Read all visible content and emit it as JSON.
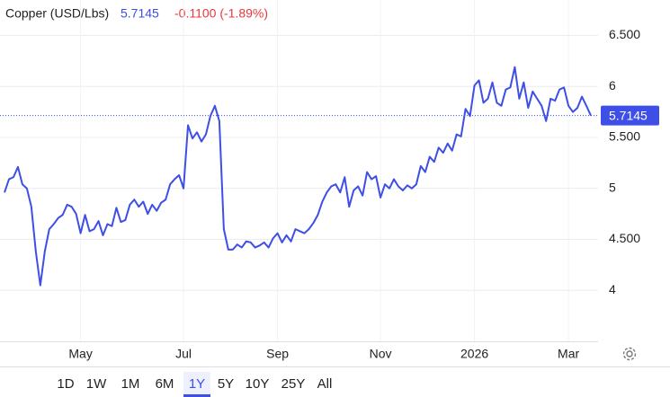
{
  "chart_data": {
    "type": "line",
    "title": "Copper (USD/Lbs)",
    "price": "5.7145",
    "change": "-0.1100 (-1.89%)",
    "color": "#3d4fe6",
    "change_color": "#e8383b",
    "grid": true,
    "categories": [
      null,
      null,
      null,
      null,
      null,
      null,
      null,
      null,
      null,
      null,
      null,
      null,
      null,
      null,
      null,
      null,
      null,
      "May",
      null,
      null,
      null,
      null,
      null,
      null,
      null,
      null,
      null,
      null,
      null,
      null,
      null,
      null,
      null,
      null,
      null,
      null,
      null,
      null,
      null,
      null,
      "Jul",
      null,
      null,
      null,
      null,
      null,
      null,
      null,
      null,
      null,
      null,
      null,
      null,
      null,
      null,
      null,
      null,
      null,
      null,
      null,
      null,
      "Sep",
      null,
      null,
      null,
      null,
      null,
      null,
      null,
      null,
      null,
      null,
      null,
      null,
      null,
      null,
      null,
      null,
      null,
      null,
      null,
      null,
      null,
      null,
      "Nov",
      null,
      null,
      null,
      null,
      null,
      null,
      null,
      null,
      null,
      null,
      null,
      null,
      null,
      null,
      null,
      null,
      null,
      null,
      null,
      null,
      "2026",
      null,
      null,
      null,
      null,
      null,
      null,
      null,
      null,
      null,
      null,
      null,
      null,
      null,
      null,
      null,
      null,
      null,
      null,
      null,
      null,
      "Mar",
      null,
      null,
      null,
      null,
      null
    ],
    "values": [
      4.96,
      5.09,
      5.11,
      5.21,
      5.04,
      5.0,
      4.82,
      4.38,
      4.05,
      4.38,
      4.6,
      4.65,
      4.71,
      4.74,
      4.84,
      4.82,
      4.75,
      4.56,
      4.74,
      4.58,
      4.6,
      4.68,
      4.54,
      4.65,
      4.63,
      4.81,
      4.67,
      4.69,
      4.84,
      4.89,
      4.82,
      4.87,
      4.75,
      4.84,
      4.78,
      4.86,
      4.89,
      5.04,
      5.09,
      5.13,
      5.0,
      5.62,
      5.49,
      5.55,
      5.46,
      5.53,
      5.71,
      5.81,
      5.66,
      4.6,
      4.4,
      4.4,
      4.45,
      4.42,
      4.48,
      4.47,
      4.42,
      4.44,
      4.47,
      4.42,
      4.51,
      4.56,
      4.47,
      4.54,
      4.48,
      4.6,
      4.58,
      4.56,
      4.6,
      4.66,
      4.74,
      4.87,
      4.96,
      5.02,
      5.04,
      4.96,
      5.11,
      4.82,
      4.98,
      5.02,
      4.93,
      5.16,
      5.09,
      5.12,
      4.91,
      5.04,
      5.0,
      5.09,
      5.02,
      4.98,
      5.03,
      5.0,
      5.04,
      5.22,
      5.16,
      5.31,
      5.26,
      5.4,
      5.35,
      5.44,
      5.37,
      5.53,
      5.51,
      5.78,
      5.71,
      6.01,
      6.06,
      5.84,
      5.88,
      6.04,
      5.84,
      5.81,
      5.97,
      5.99,
      6.19,
      5.88,
      6.04,
      5.79,
      5.95,
      5.88,
      5.81,
      5.66,
      5.88,
      5.86,
      5.97,
      5.99,
      5.81,
      5.75,
      5.79,
      5.9,
      5.81,
      5.7145
    ],
    "ylim": [
      3.5,
      6.76
    ],
    "yticks": [
      {
        "value": 4,
        "label": "4"
      },
      {
        "value": 4.5,
        "label": "4.500"
      },
      {
        "value": 5,
        "label": "5"
      },
      {
        "value": 5.5,
        "label": "5.500"
      },
      {
        "value": 6,
        "label": "6"
      },
      {
        "value": 6.5,
        "label": "6.500"
      }
    ],
    "ranges": [
      {
        "label": "1D",
        "selected": false
      },
      {
        "label": "1W",
        "selected": false
      },
      {
        "label": "1M",
        "selected": false
      },
      {
        "label": "6M",
        "selected": false
      },
      {
        "label": "1Y",
        "selected": true
      },
      {
        "label": "5Y",
        "selected": false
      },
      {
        "label": "10Y",
        "selected": false
      },
      {
        "label": "25Y",
        "selected": false
      },
      {
        "label": "All",
        "selected": false
      }
    ]
  }
}
